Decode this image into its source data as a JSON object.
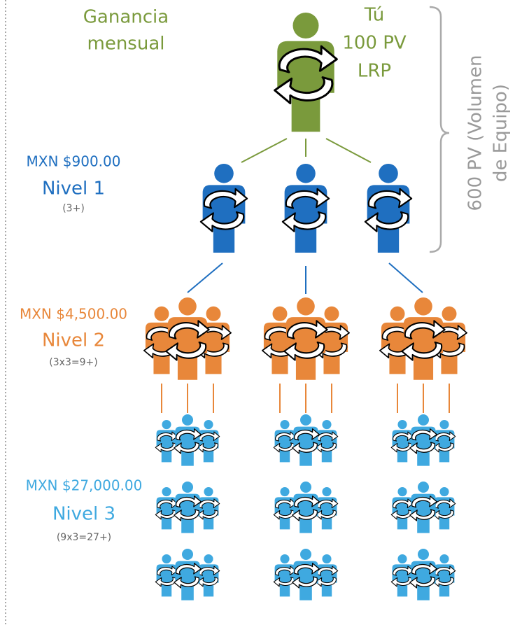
{
  "header": {
    "title_lines": [
      "Ganancia",
      "mensual"
    ]
  },
  "you": {
    "lines": [
      "Tú",
      "100 PV",
      "LRP"
    ]
  },
  "team_volume": {
    "lines": [
      "600 PV (Volumen",
      "de Equipo)"
    ]
  },
  "levels": [
    {
      "earning": "MXN $900.00",
      "name": "Nivel 1",
      "count": "(3+)"
    },
    {
      "earning": "MXN $4,500.00",
      "name": "Nivel 2",
      "count": "(3x3=9+)"
    },
    {
      "earning": "MXN $27,000.00",
      "name": "Nivel 3",
      "count": "(9x3=27+)"
    }
  ]
}
